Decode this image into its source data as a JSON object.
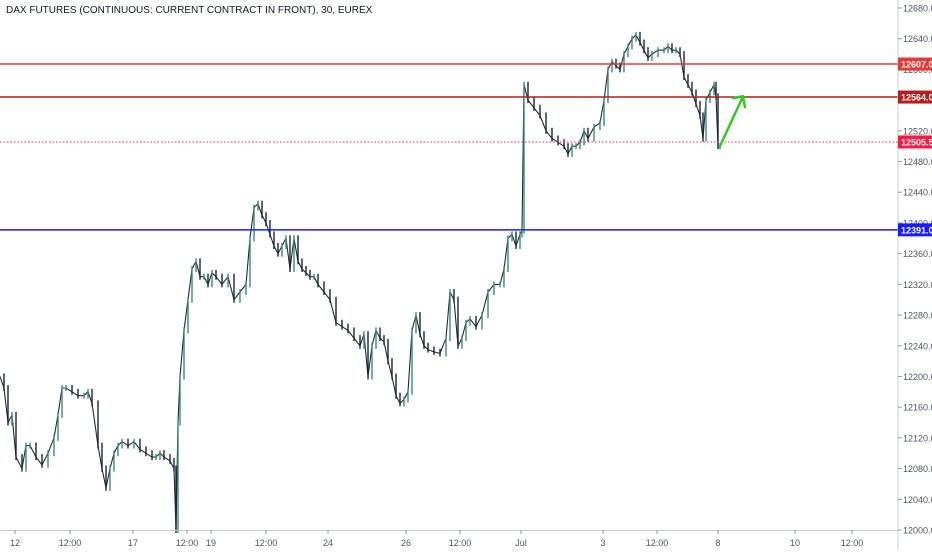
{
  "chart_data": {
    "type": "candlestick",
    "title": "DAX FUTURES (CONTINUOUS: CURRENT CONTRACT IN FRONT), 30, EUREX",
    "y_axis": {
      "range": [
        12000,
        12700
      ],
      "ticks": [
        "12680.0",
        "12640.0",
        "12600.0",
        "12560.0",
        "12520.0",
        "12480.0",
        "12440.0",
        "12400.0",
        "12360.0",
        "12320.0",
        "12280.0",
        "12240.0",
        "12200.0",
        "12160.0",
        "12120.0",
        "12080.0",
        "12040.0",
        "12000.0"
      ],
      "position": "right"
    },
    "x_axis": {
      "ticks": [
        "12",
        "12:00",
        "17",
        "12:00",
        "19",
        "12:00",
        "24",
        "26",
        "12:00",
        "Jul",
        "3",
        "12:00",
        "8",
        "10",
        "12:00"
      ]
    },
    "horizontal_lines": [
      {
        "label": "12607.0",
        "value": 12607.0,
        "color": "#e53935",
        "style": "solid"
      },
      {
        "label": "12564.0",
        "value": 12564.0,
        "color": "#b71c1c",
        "style": "solid"
      },
      {
        "label": "12505.5",
        "value": 12505.5,
        "color": "#ff1744",
        "style": "dotted"
      },
      {
        "label": "12391.0",
        "value": 12391.0,
        "color": "#1a1aff",
        "style": "solid"
      }
    ],
    "annotation": {
      "type": "arrow",
      "color": "#2ecc1f",
      "direction": "up",
      "from_value": 12500,
      "to_value": 12565
    },
    "path_points": [
      [
        0,
        12200
      ],
      [
        4,
        12185
      ],
      [
        8,
        12140
      ],
      [
        12,
        12150
      ],
      [
        16,
        12095
      ],
      [
        22,
        12080
      ],
      [
        26,
        12110
      ],
      [
        30,
        12110
      ],
      [
        36,
        12095
      ],
      [
        42,
        12085
      ],
      [
        48,
        12100
      ],
      [
        54,
        12120
      ],
      [
        58,
        12150
      ],
      [
        62,
        12185
      ],
      [
        66,
        12185
      ],
      [
        72,
        12180
      ],
      [
        78,
        12175
      ],
      [
        84,
        12175
      ],
      [
        88,
        12180
      ],
      [
        92,
        12165
      ],
      [
        98,
        12110
      ],
      [
        102,
        12080
      ],
      [
        106,
        12055
      ],
      [
        110,
        12080
      ],
      [
        114,
        12100
      ],
      [
        118,
        12110
      ],
      [
        122,
        12115
      ],
      [
        128,
        12110
      ],
      [
        134,
        12115
      ],
      [
        140,
        12105
      ],
      [
        146,
        12100
      ],
      [
        152,
        12095
      ],
      [
        156,
        12095
      ],
      [
        160,
        12100
      ],
      [
        164,
        12095
      ],
      [
        170,
        12090
      ],
      [
        174,
        12080
      ],
      [
        176,
        12000
      ],
      [
        178,
        12140
      ],
      [
        180,
        12200
      ],
      [
        184,
        12260
      ],
      [
        188,
        12300
      ],
      [
        192,
        12340
      ],
      [
        196,
        12350
      ],
      [
        200,
        12330
      ],
      [
        204,
        12330
      ],
      [
        208,
        12320
      ],
      [
        212,
        12335
      ],
      [
        216,
        12330
      ],
      [
        222,
        12320
      ],
      [
        228,
        12330
      ],
      [
        234,
        12300
      ],
      [
        240,
        12310
      ],
      [
        246,
        12320
      ],
      [
        250,
        12380
      ],
      [
        254,
        12420
      ],
      [
        258,
        12425
      ],
      [
        262,
        12410
      ],
      [
        266,
        12400
      ],
      [
        270,
        12385
      ],
      [
        274,
        12370
      ],
      [
        278,
        12360
      ],
      [
        282,
        12370
      ],
      [
        286,
        12380
      ],
      [
        290,
        12340
      ],
      [
        294,
        12380
      ],
      [
        298,
        12350
      ],
      [
        302,
        12340
      ],
      [
        306,
        12335
      ],
      [
        310,
        12330
      ],
      [
        314,
        12330
      ],
      [
        318,
        12320
      ],
      [
        324,
        12310
      ],
      [
        330,
        12300
      ],
      [
        336,
        12270
      ],
      [
        342,
        12265
      ],
      [
        348,
        12260
      ],
      [
        354,
        12250
      ],
      [
        360,
        12240
      ],
      [
        364,
        12255
      ],
      [
        368,
        12200
      ],
      [
        372,
        12240
      ],
      [
        376,
        12260
      ],
      [
        380,
        12250
      ],
      [
        384,
        12245
      ],
      [
        388,
        12220
      ],
      [
        392,
        12200
      ],
      [
        396,
        12175
      ],
      [
        400,
        12165
      ],
      [
        404,
        12170
      ],
      [
        408,
        12180
      ],
      [
        412,
        12260
      ],
      [
        416,
        12280
      ],
      [
        420,
        12255
      ],
      [
        424,
        12240
      ],
      [
        428,
        12235
      ],
      [
        434,
        12232
      ],
      [
        440,
        12230
      ],
      [
        446,
        12250
      ],
      [
        450,
        12310
      ],
      [
        454,
        12300
      ],
      [
        458,
        12240
      ],
      [
        462,
        12250
      ],
      [
        466,
        12270
      ],
      [
        470,
        12275
      ],
      [
        476,
        12265
      ],
      [
        482,
        12280
      ],
      [
        488,
        12310
      ],
      [
        494,
        12320
      ],
      [
        500,
        12320
      ],
      [
        504,
        12340
      ],
      [
        508,
        12380
      ],
      [
        512,
        12385
      ],
      [
        516,
        12370
      ],
      [
        520,
        12385
      ],
      [
        522,
        12390
      ],
      [
        524,
        12580
      ],
      [
        528,
        12560
      ],
      [
        534,
        12550
      ],
      [
        540,
        12540
      ],
      [
        546,
        12520
      ],
      [
        552,
        12510
      ],
      [
        558,
        12505
      ],
      [
        564,
        12500
      ],
      [
        568,
        12490
      ],
      [
        572,
        12500
      ],
      [
        576,
        12500
      ],
      [
        580,
        12505
      ],
      [
        584,
        12520
      ],
      [
        588,
        12510
      ],
      [
        594,
        12525
      ],
      [
        600,
        12530
      ],
      [
        604,
        12560
      ],
      [
        608,
        12600
      ],
      [
        612,
        12610
      ],
      [
        616,
        12605
      ],
      [
        620,
        12600
      ],
      [
        624,
        12620
      ],
      [
        628,
        12630
      ],
      [
        632,
        12640
      ],
      [
        636,
        12645
      ],
      [
        640,
        12635
      ],
      [
        644,
        12625
      ],
      [
        648,
        12615
      ],
      [
        652,
        12620
      ],
      [
        658,
        12625
      ],
      [
        664,
        12625
      ],
      [
        668,
        12630
      ],
      [
        672,
        12625
      ],
      [
        676,
        12625
      ],
      [
        680,
        12620
      ],
      [
        684,
        12590
      ],
      [
        688,
        12580
      ],
      [
        692,
        12570
      ],
      [
        696,
        12555
      ],
      [
        700,
        12540
      ],
      [
        703,
        12510
      ],
      [
        706,
        12560
      ],
      [
        710,
        12570
      ],
      [
        714,
        12580
      ],
      [
        716,
        12565
      ],
      [
        718,
        12500
      ],
      [
        720,
        12500
      ]
    ]
  }
}
